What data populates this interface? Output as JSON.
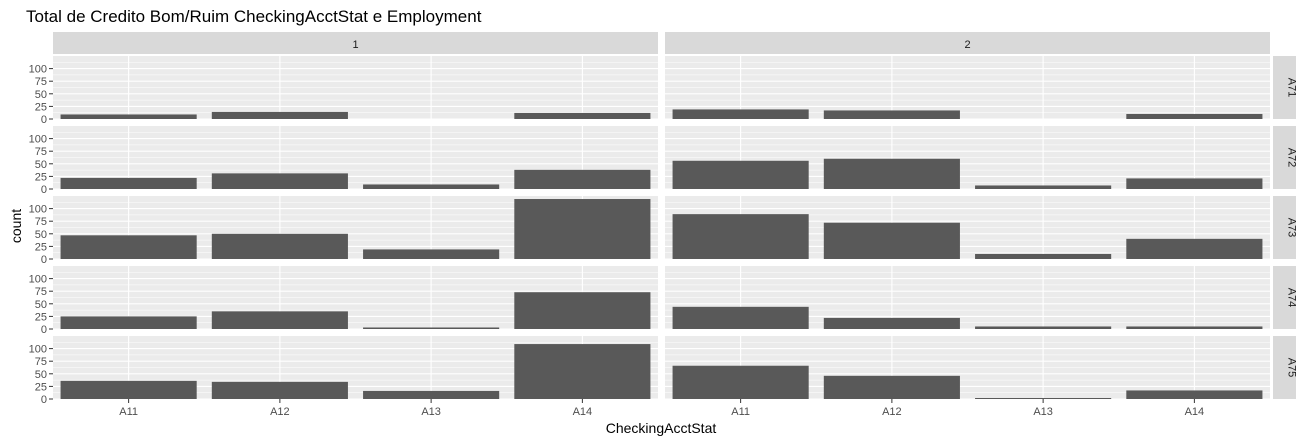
{
  "chart_data": {
    "type": "bar",
    "title": "Total de Credito Bom/Ruim CheckingAcctStat e Employment",
    "xlabel": "CheckingAcctStat",
    "ylabel": "count",
    "categories": [
      "A11",
      "A12",
      "A13",
      "A14"
    ],
    "ylim": [
      0,
      125
    ],
    "yticks": [
      0,
      25,
      50,
      75,
      100
    ],
    "facet_cols": [
      "1",
      "2"
    ],
    "facet_rows": [
      "A71",
      "A72",
      "A73",
      "A74",
      "A75"
    ],
    "panels": {
      "A71": {
        "1": [
          9,
          14,
          0,
          12
        ],
        "2": [
          19,
          17,
          0,
          10
        ]
      },
      "A72": {
        "1": [
          22,
          31,
          9,
          38
        ],
        "2": [
          56,
          60,
          7,
          21
        ]
      },
      "A73": {
        "1": [
          47,
          50,
          19,
          119
        ],
        "2": [
          89,
          72,
          10,
          40
        ]
      },
      "A74": {
        "1": [
          25,
          35,
          3,
          73
        ],
        "2": [
          44,
          22,
          5,
          5
        ]
      },
      "A75": {
        "1": [
          36,
          34,
          16,
          109
        ],
        "2": [
          66,
          46,
          2,
          17
        ]
      }
    },
    "grid": true,
    "legend": "none",
    "colors": {
      "bar": "#595959",
      "panel_bg": "#ebebeb",
      "strip_bg": "#d9d9d9",
      "grid": "#ffffff"
    }
  }
}
